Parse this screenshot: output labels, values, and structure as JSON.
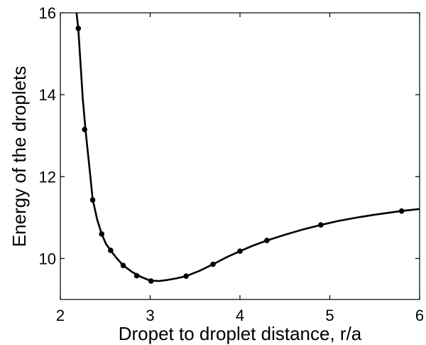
{
  "chart_data": {
    "type": "line",
    "title": "",
    "xlabel": "Dropet to droplet distance, r/a",
    "ylabel": "Energy of the droplets",
    "xlim": [
      2,
      6
    ],
    "ylim": [
      9,
      16
    ],
    "xticks": [
      2,
      3,
      4,
      5,
      6
    ],
    "yticks": [
      10,
      12,
      14,
      16
    ],
    "grid": false,
    "legend": "none",
    "line_color": "#000000",
    "series": [
      {
        "curve": [
          [
            2.18,
            16.0
          ],
          [
            2.2,
            15.6
          ],
          [
            2.25,
            13.9
          ],
          [
            2.28,
            13.15
          ],
          [
            2.33,
            12.1
          ],
          [
            2.36,
            11.45
          ],
          [
            2.41,
            10.95
          ],
          [
            2.46,
            10.6
          ],
          [
            2.51,
            10.35
          ],
          [
            2.56,
            10.2
          ],
          [
            2.63,
            10.0
          ],
          [
            2.7,
            9.83
          ],
          [
            2.8,
            9.67
          ],
          [
            2.9,
            9.55
          ],
          [
            3.0,
            9.46
          ],
          [
            3.1,
            9.45
          ],
          [
            3.2,
            9.48
          ],
          [
            3.3,
            9.52
          ],
          [
            3.4,
            9.57
          ],
          [
            3.55,
            9.7
          ],
          [
            3.7,
            9.86
          ],
          [
            3.85,
            10.03
          ],
          [
            4.0,
            10.18
          ],
          [
            4.15,
            10.32
          ],
          [
            4.3,
            10.44
          ],
          [
            4.5,
            10.58
          ],
          [
            4.7,
            10.71
          ],
          [
            4.9,
            10.82
          ],
          [
            5.1,
            10.92
          ],
          [
            5.3,
            11.0
          ],
          [
            5.5,
            11.07
          ],
          [
            5.8,
            11.16
          ],
          [
            6.0,
            11.21
          ]
        ],
        "points": [
          [
            2.2,
            15.62
          ],
          [
            2.27,
            13.15
          ],
          [
            2.36,
            11.43
          ],
          [
            2.46,
            10.6
          ],
          [
            2.56,
            10.2
          ],
          [
            2.7,
            9.83
          ],
          [
            2.85,
            9.58
          ],
          [
            3.01,
            9.45
          ],
          [
            3.4,
            9.57
          ],
          [
            3.7,
            9.86
          ],
          [
            4.0,
            10.18
          ],
          [
            4.3,
            10.44
          ],
          [
            4.9,
            10.82
          ],
          [
            5.8,
            11.16
          ]
        ]
      }
    ]
  }
}
